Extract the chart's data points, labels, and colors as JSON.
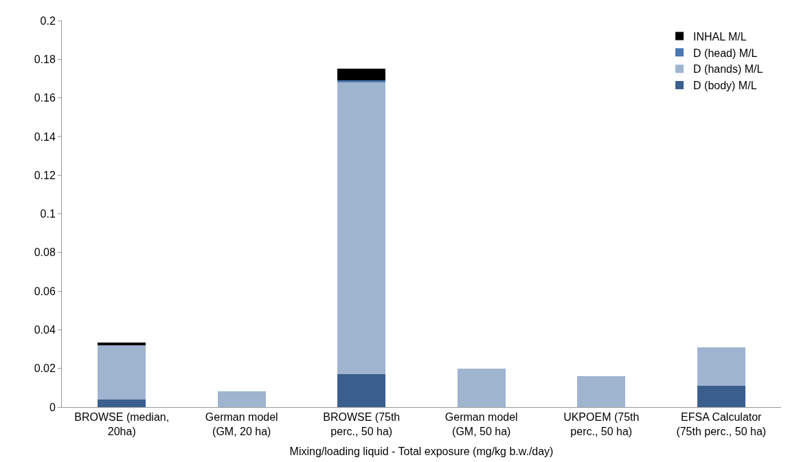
{
  "chart_data": {
    "type": "bar",
    "stacked": true,
    "xlabel": "Mixing/loading liquid - Total exposure (mg/kg b.w./day)",
    "categories": [
      "BROWSE (median, 20ha)",
      "German model (GM, 20 ha)",
      "BROWSE (75th perc., 50 ha)",
      "German model (GM, 50 ha)",
      "UKPOEM (75th perc., 50 ha)",
      "EFSA Calculator (75th perc., 50 ha)"
    ],
    "series": [
      {
        "name": "D (body) M/L",
        "color": "#3a5f8f",
        "values": [
          0.004,
          0,
          0.017,
          0,
          0,
          0.011
        ]
      },
      {
        "name": "D (hands) M/L",
        "color": "#9fb4cf",
        "values": [
          0.028,
          0.008,
          0.151,
          0.02,
          0.016,
          0.02
        ]
      },
      {
        "name": "D (head) M/L",
        "color": "#4a78b0",
        "values": [
          0,
          0,
          0.001,
          0,
          0,
          0
        ]
      },
      {
        "name": "INHAL M/L",
        "color": "#000000",
        "values": [
          0.0015,
          0,
          0.006,
          0,
          0,
          0
        ]
      }
    ],
    "ylim": [
      0,
      0.2
    ],
    "yticks": [
      0,
      0.02,
      0.04,
      0.06,
      0.08,
      0.1,
      0.12,
      0.14,
      0.16,
      0.18,
      0.2
    ],
    "legend": "top right"
  }
}
